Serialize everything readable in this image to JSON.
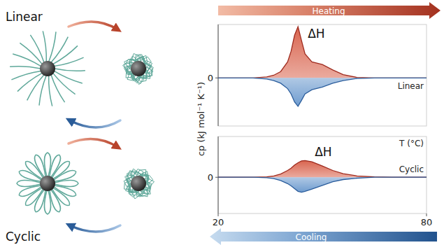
{
  "schematic": {
    "top_label": "Linear",
    "bottom_label": "Cyclic"
  },
  "arrows": {
    "heating": "Heating",
    "cooling": "Cooling"
  },
  "chart_data": [
    {
      "type": "area",
      "title": "Linear",
      "ylabel": "cp (kJ mol⁻¹ K⁻¹)",
      "annotations": [
        "ΔH"
      ],
      "x": [
        20,
        30,
        34,
        36,
        38,
        40,
        41,
        42,
        43,
        44,
        45,
        47,
        50,
        53,
        56,
        60,
        65,
        70,
        80
      ],
      "xlim": [
        20,
        80
      ],
      "xticks": [],
      "ylim": [
        -0.9,
        1
      ],
      "yticks": [
        0
      ],
      "tick_labels": "y",
      "series": [
        {
          "color": "#d9654f",
          "values": [
            0,
            0,
            0.02,
            0.05,
            0.12,
            0.3,
            0.5,
            0.8,
            0.96,
            0.7,
            0.45,
            0.3,
            0.25,
            0.15,
            0.06,
            0.01,
            0,
            0,
            0
          ]
        },
        {
          "color": "#6f9ccf",
          "values": [
            0,
            0,
            -0.02,
            -0.05,
            -0.1,
            -0.2,
            -0.3,
            -0.45,
            -0.53,
            -0.42,
            -0.3,
            -0.22,
            -0.17,
            -0.1,
            -0.05,
            -0.01,
            0,
            0,
            0
          ]
        }
      ]
    },
    {
      "type": "area",
      "title": "Cyclic",
      "xlabel": "T (°C)",
      "annotations": [
        "ΔH"
      ],
      "x": [
        20,
        30,
        34,
        36,
        38,
        40,
        41,
        42,
        43,
        44,
        45,
        47,
        50,
        53,
        56,
        60,
        65,
        70,
        80
      ],
      "xlim": [
        20,
        80
      ],
      "xticks": [
        20,
        80
      ],
      "ylim": [
        -0.8,
        0.9
      ],
      "yticks": [
        0
      ],
      "series": [
        {
          "color": "#d9654f",
          "values": [
            0,
            0,
            0.01,
            0.03,
            0.07,
            0.15,
            0.2,
            0.27,
            0.32,
            0.36,
            0.37,
            0.34,
            0.25,
            0.15,
            0.08,
            0.03,
            0.01,
            0,
            0
          ]
        },
        {
          "color": "#6f9ccf",
          "values": [
            0,
            0,
            -0.01,
            -0.03,
            -0.07,
            -0.14,
            -0.19,
            -0.25,
            -0.31,
            -0.33,
            -0.31,
            -0.26,
            -0.18,
            -0.1,
            -0.05,
            -0.02,
            0,
            0,
            0
          ]
        }
      ]
    }
  ]
}
